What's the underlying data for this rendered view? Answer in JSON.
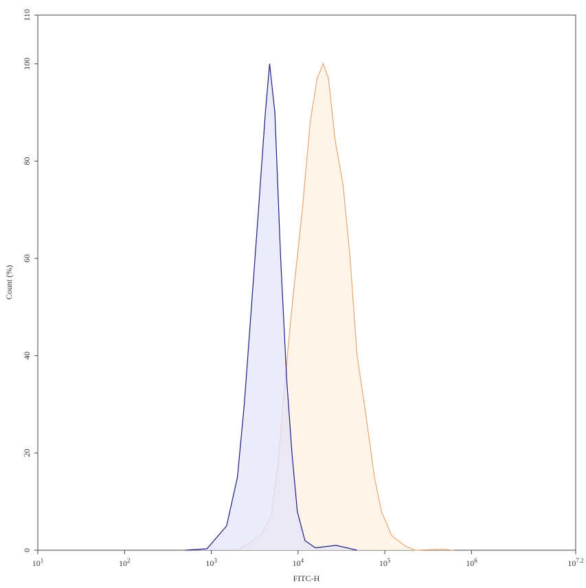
{
  "chart_data": {
    "type": "histogram-overlay",
    "x_label": "FITC-H",
    "y_label": "Count (%)",
    "xscale": "log",
    "xlim": [
      10,
      15848931.92
    ],
    "xticks": [
      {
        "value": 10,
        "label": "10",
        "exponent": "1"
      },
      {
        "value": 100,
        "label": "10",
        "exponent": "2"
      },
      {
        "value": 1000,
        "label": "10",
        "exponent": "3"
      },
      {
        "value": 10000,
        "label": "10",
        "exponent": "4"
      },
      {
        "value": 100000,
        "label": "10",
        "exponent": "5"
      },
      {
        "value": 1000000,
        "label": "10",
        "exponent": "6"
      },
      {
        "value": 15848931.92,
        "label": "10",
        "exponent": "7.2"
      }
    ],
    "ylim": [
      0,
      110
    ],
    "yticks": [
      0,
      20,
      40,
      60,
      80,
      100,
      110
    ],
    "series": [
      {
        "color": "#e8a66c",
        "fill_color": "#fdf0e2",
        "x": [
          2000,
          3700,
          4900,
          5900,
          7100,
          8500,
          11200,
          13800,
          16600,
          19500,
          22400,
          26900,
          33100,
          39800,
          47900,
          60300,
          75900,
          91200,
          120000,
          174000,
          224000,
          468000,
          617000
        ],
        "values": [
          0,
          3,
          7,
          18,
          35,
          50,
          70,
          88,
          97,
          100,
          97,
          84,
          75,
          60,
          40,
          28,
          15,
          8,
          3,
          0.8,
          0,
          0.2,
          0
        ]
      },
      {
        "color": "#1c1c80",
        "fill_color": "#e4e4fa",
        "x": [
          500,
          890,
          1500,
          2000,
          2400,
          2900,
          3500,
          4200,
          4700,
          5400,
          6300,
          7400,
          8500,
          9800,
          12000,
          15800,
          27500,
          47900
        ],
        "values": [
          0,
          0.3,
          5,
          15,
          30,
          50,
          70,
          90,
          100,
          90,
          60,
          35,
          20,
          8,
          2,
          0.5,
          1,
          0
        ]
      }
    ]
  }
}
